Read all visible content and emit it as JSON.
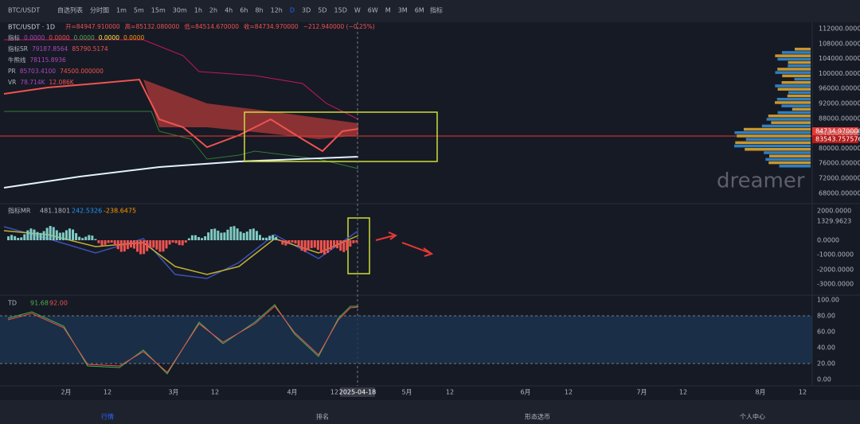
{
  "toolbar": {
    "symbol": "BTC/USDT",
    "buttons": [
      "自选列表",
      "分时图",
      "1m",
      "5m",
      "15m",
      "30m",
      "1h",
      "2h",
      "4h",
      "6h",
      "8h",
      "12h",
      "D",
      "3D",
      "5D",
      "15D",
      "W",
      "6W",
      "M",
      "3M",
      "6M"
    ],
    "indicator": "指标"
  },
  "legend": {
    "symbol": "BTC/USDT · 1D",
    "ohlc": [
      "开=84947.910000",
      "高=85132.080000",
      "低=84514.670000",
      "收=84734.970000",
      "−212.940000 (−0.25%)"
    ],
    "lines": [
      [
        "指标",
        "0.0000",
        "0.0000",
        "0.0000",
        "0.0000",
        "0.0000"
      ],
      [
        "指标SR",
        "79187.8564",
        "85790.5174"
      ],
      [
        "牛熊线",
        "78115.8936"
      ],
      [
        "PR",
        "85703.4100",
        "74500.000000"
      ],
      [
        "VR",
        "78.714K",
        "12.086K"
      ]
    ]
  },
  "price_axis": {
    "ticks": [
      "112000.000000",
      "108000.000000",
      "104000.000000",
      "100000.000000",
      "96000.000000",
      "92000.000000",
      "88000.000000",
      "84000.000000",
      "80000.000000",
      "76000.000000",
      "72000.000000",
      "68000.000000"
    ],
    "last": "84734.970000",
    "marker": "83543.757576"
  },
  "watermark": "dreamer",
  "mr": {
    "label": [
      "指标MR",
      "481.1801",
      "242.5326",
      "-238.6475"
    ],
    "ticks": [
      "2000.0000",
      "1329.9623",
      "0.0000",
      "-1000.0000",
      "-2000.0000",
      "-3000.0000"
    ]
  },
  "td": {
    "label": [
      "TD",
      "91.68",
      "92.00"
    ],
    "ticks": [
      "100.00",
      "80.00",
      "60.00",
      "40.00",
      "20.00",
      "0.00"
    ]
  },
  "x_axis": {
    "labels": [
      "2月",
      "12",
      "3月",
      "12",
      "4月",
      "12",
      "2025-04-18",
      "5月",
      "12",
      "6月",
      "12",
      "7月",
      "12",
      "8月",
      "12"
    ]
  },
  "nav": [
    "行情",
    "排名",
    "形态选币",
    "个人中心"
  ]
}
